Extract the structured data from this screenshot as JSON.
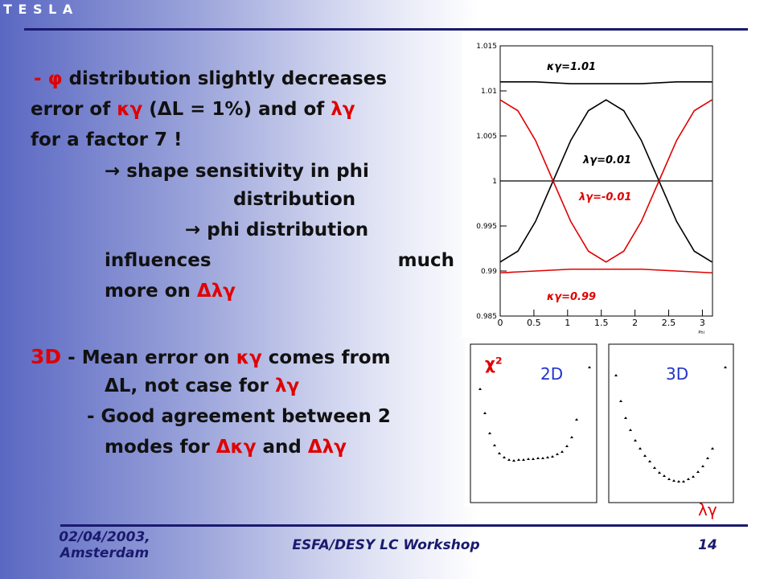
{
  "slide": {
    "brand": "T E S L A",
    "lines": [
      [
        "- ",
        "φ",
        " distribution slightly decreases"
      ],
      [
        "error of ",
        "κγ",
        " (ΔL = 1%) and of ",
        "λγ"
      ],
      [
        "for a factor 7 !"
      ],
      [
        "→ shape sensitivity in phi"
      ],
      [
        "distribution"
      ],
      [
        "→ phi distribution"
      ],
      [
        "influences",
        "much"
      ],
      [
        "more on ",
        "Δλγ"
      ],
      [
        "3D",
        " - Mean error on ",
        "κγ",
        " comes from"
      ],
      [
        "ΔL, not case for ",
        "λγ"
      ],
      [
        "- Good agreement between 2"
      ],
      [
        "modes for ",
        "Δκγ",
        " and ",
        "Δλγ"
      ]
    ],
    "small_plots": {
      "ylabel": "χ²",
      "left_label": "2D",
      "right_label": "3D",
      "xlabel": "λγ"
    },
    "footer": {
      "date": "02/04/2003,",
      "place": "Amsterdam",
      "event": "ESFA/DESY LC Workshop",
      "page": "14"
    }
  },
  "chart_data": {
    "type": "line",
    "xlabel": "Phi",
    "x": [
      0,
      0.262,
      0.524,
      0.785,
      1.047,
      1.309,
      1.571,
      1.833,
      2.094,
      2.356,
      2.618,
      2.88,
      3.142
    ],
    "series": [
      {
        "name": "κγ=1.01",
        "color": "#000000",
        "values": [
          1.011,
          1.011,
          1.011,
          1.0109,
          1.0108,
          1.0108,
          1.0108,
          1.0108,
          1.0108,
          1.0109,
          1.011,
          1.011,
          1.011
        ]
      },
      {
        "name": "λγ=0.01",
        "color": "#000000",
        "values": [
          0.991,
          0.9922,
          0.9955,
          1.0,
          1.0045,
          1.0078,
          1.009,
          1.0078,
          1.0045,
          1.0,
          0.9955,
          0.9922,
          0.991
        ]
      },
      {
        "name": "λγ=-0.01",
        "color": "#e00000",
        "values": [
          1.009,
          1.0078,
          1.0045,
          1.0,
          0.9955,
          0.9922,
          0.991,
          0.9922,
          0.9955,
          1.0,
          1.0045,
          1.0078,
          1.009
        ]
      },
      {
        "name": "κγ=0.99",
        "color": "#e00000",
        "values": [
          0.9898,
          0.9899,
          0.99,
          0.9901,
          0.9902,
          0.9902,
          0.9902,
          0.9902,
          0.9902,
          0.9901,
          0.99,
          0.9899,
          0.9898
        ]
      }
    ],
    "reference_line": 1,
    "xlim": [
      0,
      3.15
    ],
    "ylim": [
      0.985,
      1.015
    ],
    "xticks": [
      0,
      0.5,
      1,
      1.5,
      2,
      2.5,
      3
    ],
    "yticks": [
      0.985,
      0.99,
      0.995,
      1,
      1.005,
      1.01,
      1.015
    ]
  }
}
